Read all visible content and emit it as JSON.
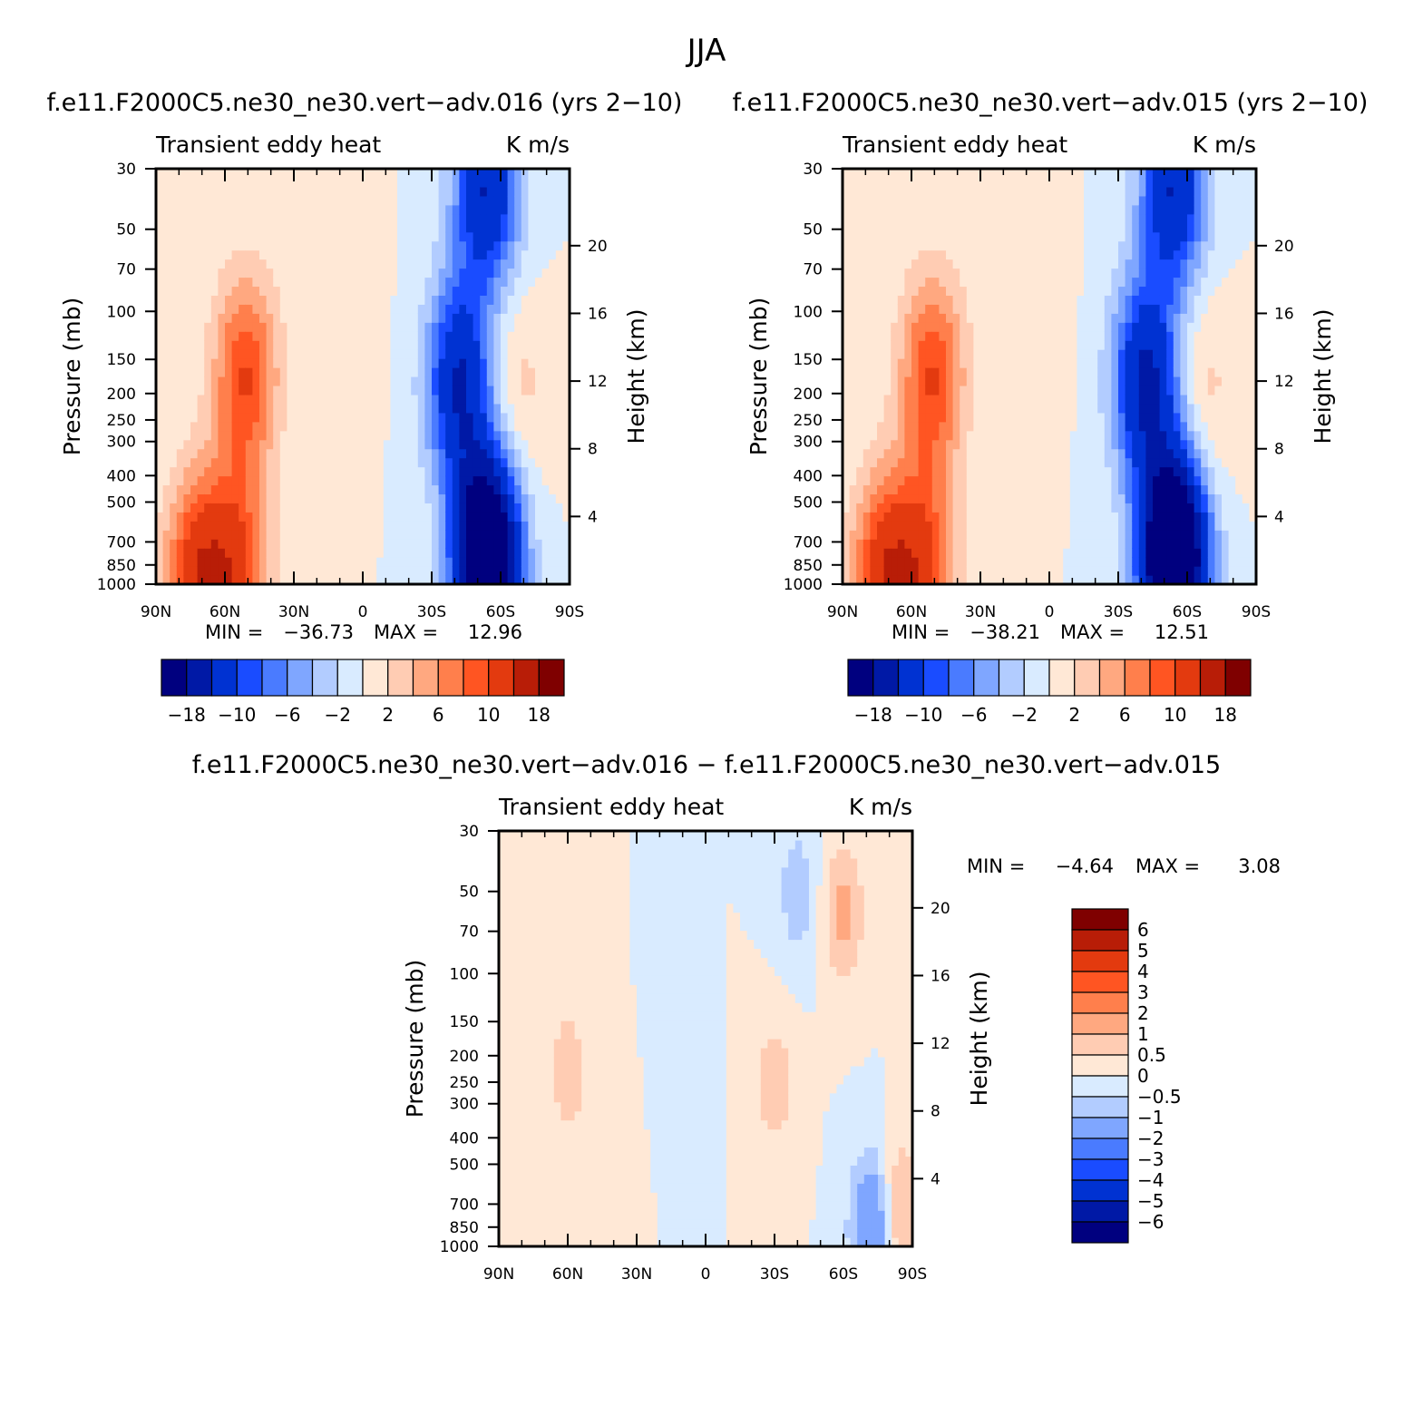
{
  "figure_title": "JJA",
  "colors": {
    "blue_scale": [
      "#00007f",
      "#0019a6",
      "#0032d2",
      "#1a4cff",
      "#4a7bff",
      "#7fa6ff",
      "#b2ccff",
      "#d9ebff"
    ],
    "red_scale": [
      "#ffe8d6",
      "#ffccb3",
      "#ffa880",
      "#ff7f4c",
      "#ff5522",
      "#e33a0f",
      "#b81d07",
      "#7f0000"
    ]
  },
  "chart_data": [
    {
      "type": "heatmap",
      "id": "panel-016",
      "title": "f.e11.F2000C5.ne30_ne30.vert−adv.016 (yrs 2−10)",
      "left_label": "Transient eddy heat",
      "right_label": "K m/s",
      "ylabel": "Pressure (mb)",
      "ylabel_right": "Height (km)",
      "xticks": [
        "90N",
        "60N",
        "30N",
        "0",
        "30S",
        "60S",
        "90S"
      ],
      "yticks": [
        "30",
        "50",
        "70",
        "100",
        "150",
        "200",
        "250",
        "300",
        "400",
        "500",
        "700",
        "850",
        "1000"
      ],
      "yticks_right": [
        "20",
        "16",
        "12",
        "8",
        "4"
      ],
      "min_label": "MIN =",
      "min_value": "−36.73",
      "max_label": "MAX =",
      "max_value": "12.96",
      "colorbar_labels": [
        "−18",
        "−10",
        "−6",
        "−2",
        "2",
        "6",
        "10",
        "18"
      ],
      "features": [
        {
          "lat": 51,
          "p": 170,
          "value": 10
        },
        {
          "lat": 55,
          "p": 900,
          "value": 10
        },
        {
          "lat": 72,
          "p": 950,
          "value": 12
        },
        {
          "lat": -54,
          "p": 800,
          "value": -30
        },
        {
          "lat": -42,
          "p": 180,
          "value": -14
        },
        {
          "lat": -54,
          "p": 35,
          "value": -14
        },
        {
          "lat": -67,
          "p": 200,
          "value": 3
        },
        {
          "lat": 10,
          "p": 110,
          "value": 2
        }
      ]
    },
    {
      "type": "heatmap",
      "id": "panel-015",
      "title": "f.e11.F2000C5.ne30_ne30.vert−adv.015 (yrs 2−10)",
      "left_label": "Transient eddy heat",
      "right_label": "K m/s",
      "ylabel": "Pressure (mb)",
      "ylabel_right": "Height (km)",
      "xticks": [
        "90N",
        "60N",
        "30N",
        "0",
        "30S",
        "60S",
        "90S"
      ],
      "yticks": [
        "30",
        "50",
        "70",
        "100",
        "150",
        "200",
        "250",
        "300",
        "400",
        "500",
        "700",
        "850",
        "1000"
      ],
      "yticks_right": [
        "20",
        "16",
        "12",
        "8",
        "4"
      ],
      "min_label": "MIN =",
      "min_value": "−38.21",
      "max_label": "MAX =",
      "max_value": "12.51",
      "colorbar_labels": [
        "−18",
        "−10",
        "−6",
        "−2",
        "2",
        "6",
        "10",
        "18"
      ],
      "features": [
        {
          "lat": 51,
          "p": 170,
          "value": 10
        },
        {
          "lat": 55,
          "p": 900,
          "value": 10
        },
        {
          "lat": 72,
          "p": 950,
          "value": 12
        },
        {
          "lat": -54,
          "p": 800,
          "value": -32
        },
        {
          "lat": -42,
          "p": 180,
          "value": -15
        },
        {
          "lat": -54,
          "p": 35,
          "value": -14
        },
        {
          "lat": -67,
          "p": 200,
          "value": 3
        },
        {
          "lat": 10,
          "p": 110,
          "value": 2
        }
      ]
    },
    {
      "type": "heatmap",
      "id": "panel-diff",
      "title": "f.e11.F2000C5.ne30_ne30.vert−adv.016 − f.e11.F2000C5.ne30_ne30.vert−adv.015",
      "left_label": "Transient eddy heat",
      "right_label": "K m/s",
      "ylabel": "Pressure (mb)",
      "ylabel_right": "Height (km)",
      "xticks": [
        "90N",
        "60N",
        "30N",
        "0",
        "30S",
        "60S",
        "90S"
      ],
      "yticks": [
        "30",
        "50",
        "70",
        "100",
        "150",
        "200",
        "250",
        "300",
        "400",
        "500",
        "700",
        "850",
        "1000"
      ],
      "yticks_right": [
        "20",
        "16",
        "12",
        "8",
        "4"
      ],
      "min_label": "MIN =",
      "min_value": "−4.64",
      "max_label": "MAX =",
      "max_value": "3.08",
      "colorbar_labels": [
        "6",
        "5",
        "4",
        "3",
        "2",
        "1",
        "0.5",
        "0",
        "−0.5",
        "−1",
        "−2",
        "−3",
        "−4",
        "−5",
        "−6"
      ],
      "features": [
        {
          "lat": -60,
          "p": 60,
          "value": 1.2
        },
        {
          "lat": -30,
          "p": 250,
          "value": 0.8
        },
        {
          "lat": 60,
          "p": 230,
          "value": 0.8
        },
        {
          "lat": -72,
          "p": 850,
          "value": -2
        },
        {
          "lat": -85,
          "p": 750,
          "value": 1.2
        },
        {
          "lat": -40,
          "p": 50,
          "value": -0.8
        },
        {
          "lat": 40,
          "p": 600,
          "value": 0.4
        },
        {
          "lat": 10,
          "p": 300,
          "value": -0.3
        }
      ]
    }
  ]
}
